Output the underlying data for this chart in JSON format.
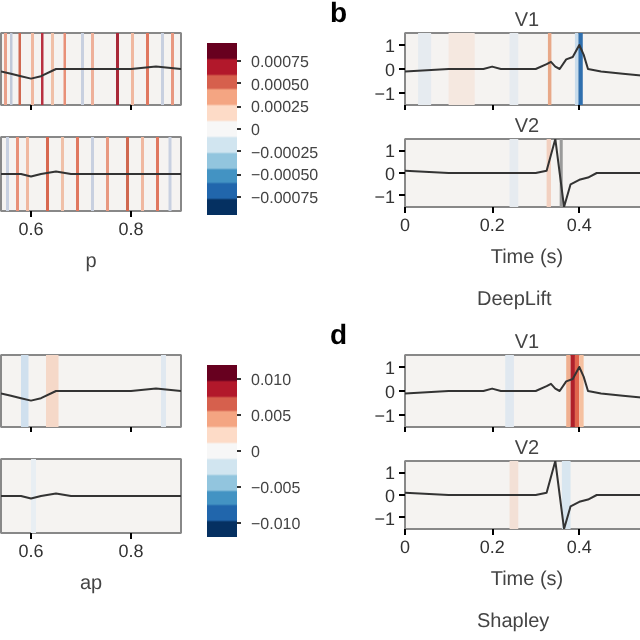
{
  "chart_data": [
    {
      "type": "line",
      "x": [
        0.54,
        0.56,
        0.58,
        0.6,
        0.62,
        0.65,
        0.7,
        0.8,
        0.85,
        0.9
      ],
      "series": [
        {
          "color": "#333333",
          "values": [
            -0.1,
            -0.2,
            -0.3,
            -0.4,
            -0.3,
            0.0,
            0.0,
            0.0,
            0.1,
            0.0
          ]
        }
      ],
      "xlim": [
        0.54,
        0.9
      ],
      "ylim": [
        -1.5,
        1.5
      ],
      "xticks": [
        0.6,
        0.8
      ],
      "yticks": [
        -1,
        0,
        1
      ],
      "tick_labels": false,
      "clim": [
        -0.00095,
        0.00095
      ],
      "cticks": [
        0.00075,
        {
          "value": 0.0005,
          "label": "0.00050"
        },
        0.00025,
        0,
        -0.00025,
        {
          "value": -0.0005,
          "label": "−0.00050"
        },
        -0.00075
      ],
      "bands": [
        {
          "axis": "x",
          "from": 0.546,
          "to": 0.552,
          "color": "#e8a08a"
        },
        {
          "axis": "x",
          "from": 0.558,
          "to": 0.563,
          "color": "#c0c8d8"
        },
        {
          "axis": "x",
          "from": 0.575,
          "to": 0.58,
          "color": "#d06850"
        },
        {
          "axis": "x",
          "from": 0.6,
          "to": 0.606,
          "color": "#f0b8a0"
        },
        {
          "axis": "x",
          "from": 0.62,
          "to": 0.625,
          "color": "#b83040"
        },
        {
          "axis": "x",
          "from": 0.64,
          "to": 0.646,
          "color": "#f0c0a8"
        },
        {
          "axis": "x",
          "from": 0.665,
          "to": 0.67,
          "color": "#e89078"
        },
        {
          "axis": "x",
          "from": 0.7,
          "to": 0.706,
          "color": "#c8d0e0"
        },
        {
          "axis": "x",
          "from": 0.72,
          "to": 0.726,
          "color": "#eeb09a"
        },
        {
          "axis": "x",
          "from": 0.77,
          "to": 0.776,
          "color": "#a82838"
        },
        {
          "axis": "x",
          "from": 0.8,
          "to": 0.806,
          "color": "#f0b8a0"
        },
        {
          "axis": "x",
          "from": 0.83,
          "to": 0.836,
          "color": "#e07860"
        },
        {
          "axis": "x",
          "from": 0.86,
          "to": 0.866,
          "color": "#c8d0e0"
        },
        {
          "axis": "x",
          "from": 0.88,
          "to": 0.886,
          "color": "#e89880"
        }
      ]
    },
    {
      "type": "line",
      "x": [
        0.54,
        0.58,
        0.6,
        0.62,
        0.65,
        0.68,
        0.75,
        0.9
      ],
      "series": [
        {
          "color": "#333333",
          "values": [
            0.0,
            0.0,
            -0.1,
            0.0,
            0.1,
            0.0,
            0.0,
            0.0
          ]
        }
      ],
      "xlim": [
        0.54,
        0.9
      ],
      "ylim": [
        -1.5,
        1.5
      ],
      "xticks": [
        0.6,
        0.8
      ],
      "yticks": [
        -1,
        0,
        1
      ],
      "tick_labels": "x",
      "xlabel": "p",
      "bands": [
        {
          "axis": "x",
          "from": 0.55,
          "to": 0.556,
          "color": "#c8d0e0"
        },
        {
          "axis": "x",
          "from": 0.57,
          "to": 0.576,
          "color": "#e89078"
        },
        {
          "axis": "x",
          "from": 0.59,
          "to": 0.596,
          "color": "#f0b8a0"
        },
        {
          "axis": "x",
          "from": 0.63,
          "to": 0.636,
          "color": "#d86850"
        },
        {
          "axis": "x",
          "from": 0.66,
          "to": 0.666,
          "color": "#f0c0a8"
        },
        {
          "axis": "x",
          "from": 0.69,
          "to": 0.696,
          "color": "#e07860"
        },
        {
          "axis": "x",
          "from": 0.72,
          "to": 0.726,
          "color": "#c8d0e0"
        },
        {
          "axis": "x",
          "from": 0.75,
          "to": 0.756,
          "color": "#e89880"
        },
        {
          "axis": "x",
          "from": 0.79,
          "to": 0.796,
          "color": "#d06850"
        },
        {
          "axis": "x",
          "from": 0.82,
          "to": 0.826,
          "color": "#f0b8a0"
        },
        {
          "axis": "x",
          "from": 0.85,
          "to": 0.856,
          "color": "#e07860"
        },
        {
          "axis": "x",
          "from": 0.875,
          "to": 0.881,
          "color": "#c8d0e0"
        }
      ]
    },
    {
      "type": "line",
      "x": [
        0,
        0.1,
        0.18,
        0.2,
        0.22,
        0.3,
        0.325,
        0.335,
        0.345,
        0.355,
        0.37,
        0.385,
        0.4,
        0.41,
        0.42,
        0.45,
        0.5,
        0.56
      ],
      "series": [
        {
          "color": "#333333",
          "values": [
            -0.1,
            0.0,
            0.0,
            0.1,
            0.0,
            0.0,
            0.2,
            0.3,
            0.1,
            0.0,
            0.4,
            0.5,
            1.0,
            0.6,
            0.0,
            -0.1,
            -0.2,
            -0.3
          ]
        }
      ],
      "xlim": [
        0,
        0.56
      ],
      "ylim": [
        -1.5,
        1.5
      ],
      "xticks": [
        0,
        0.2,
        0.4
      ],
      "yticks": [
        -1,
        0,
        1
      ],
      "tick_labels": "y",
      "title": "V1",
      "annotations": [
        "b"
      ],
      "bands": [
        {
          "axis": "x",
          "from": 0.03,
          "to": 0.06,
          "color": "#e6ebf0"
        },
        {
          "axis": "x",
          "from": 0.1,
          "to": 0.16,
          "color": "#f5e8e0"
        },
        {
          "axis": "x",
          "from": 0.24,
          "to": 0.26,
          "color": "#e6ebf0"
        },
        {
          "axis": "x",
          "from": 0.328,
          "to": 0.336,
          "color": "#e8a888"
        },
        {
          "axis": "x",
          "from": 0.39,
          "to": 0.398,
          "color": "#c8dcec"
        },
        {
          "axis": "x",
          "from": 0.398,
          "to": 0.408,
          "color": "#2f6fae"
        }
      ]
    },
    {
      "type": "line",
      "x": [
        0,
        0.1,
        0.2,
        0.3,
        0.325,
        0.345,
        0.355,
        0.365,
        0.38,
        0.4,
        0.42,
        0.44,
        0.5,
        0.56
      ],
      "series": [
        {
          "color": "#333333",
          "values": [
            0.1,
            0.0,
            0.0,
            0.0,
            0.1,
            1.5,
            0.0,
            -1.5,
            -0.5,
            -0.3,
            -0.2,
            0.0,
            0.0,
            0.0
          ]
        }
      ],
      "xlim": [
        0,
        0.56
      ],
      "ylim": [
        -1.5,
        1.5
      ],
      "xticks": [
        0,
        0.2,
        0.4
      ],
      "yticks": [
        -1,
        0,
        1
      ],
      "title": "V2",
      "xlabel": "Time (s)",
      "annotations": [
        "DeepLift"
      ],
      "bands": [
        {
          "axis": "x",
          "from": 0.24,
          "to": 0.26,
          "color": "#e6ebf0"
        },
        {
          "axis": "x",
          "from": 0.325,
          "to": 0.335,
          "color": "#f2d0c0"
        },
        {
          "axis": "x",
          "from": 0.355,
          "to": 0.362,
          "color": "#9a9a9a"
        }
      ]
    },
    {
      "type": "line",
      "x": [
        0.54,
        0.56,
        0.58,
        0.6,
        0.62,
        0.65,
        0.7,
        0.8,
        0.85,
        0.9
      ],
      "series": [
        {
          "color": "#333333",
          "values": [
            -0.1,
            -0.2,
            -0.3,
            -0.4,
            -0.3,
            0.0,
            0.0,
            0.0,
            0.1,
            0.0
          ]
        }
      ],
      "xlim": [
        0.54,
        0.9
      ],
      "ylim": [
        -1.5,
        1.5
      ],
      "xticks": [
        0.6,
        0.8
      ],
      "yticks": [
        -1,
        0,
        1
      ],
      "tick_labels": false,
      "clim": [
        -0.012,
        0.012
      ],
      "cticks": [
        {
          "value": 0.01,
          "label": "0.010"
        },
        0.005,
        0,
        -0.005,
        {
          "value": -0.01,
          "label": "−0.010"
        }
      ],
      "bands": [
        {
          "axis": "x",
          "from": 0.58,
          "to": 0.595,
          "color": "#d0e0ee"
        },
        {
          "axis": "x",
          "from": 0.63,
          "to": 0.655,
          "color": "#f5d8c8"
        },
        {
          "axis": "x",
          "from": 0.86,
          "to": 0.87,
          "color": "#e0e8f0"
        }
      ]
    },
    {
      "type": "line",
      "x": [
        0.54,
        0.58,
        0.6,
        0.62,
        0.65,
        0.68,
        0.75,
        0.9
      ],
      "series": [
        {
          "color": "#333333",
          "values": [
            0.0,
            0.0,
            -0.1,
            0.0,
            0.1,
            0.0,
            0.0,
            0.0
          ]
        }
      ],
      "xlim": [
        0.54,
        0.9
      ],
      "ylim": [
        -1.5,
        1.5
      ],
      "xticks": [
        0.6,
        0.8
      ],
      "yticks": [
        -1,
        0,
        1
      ],
      "tick_labels": "x",
      "xlabel": "ap",
      "bands": [
        {
          "axis": "x",
          "from": 0.6,
          "to": 0.61,
          "color": "#e8eef3"
        }
      ]
    },
    {
      "type": "line",
      "x": [
        0,
        0.1,
        0.18,
        0.2,
        0.22,
        0.3,
        0.325,
        0.335,
        0.345,
        0.355,
        0.37,
        0.385,
        0.4,
        0.41,
        0.42,
        0.45,
        0.5,
        0.56
      ],
      "series": [
        {
          "color": "#333333",
          "values": [
            -0.1,
            0.0,
            0.0,
            0.1,
            0.0,
            0.0,
            0.2,
            0.3,
            0.1,
            0.0,
            0.4,
            0.5,
            1.0,
            0.6,
            0.0,
            -0.1,
            -0.2,
            -0.3
          ]
        }
      ],
      "xlim": [
        0,
        0.56
      ],
      "ylim": [
        -1.5,
        1.5
      ],
      "xticks": [
        0,
        0.2,
        0.4
      ],
      "yticks": [
        -1,
        0,
        1
      ],
      "tick_labels": "y",
      "title": "V1",
      "annotations": [
        "d"
      ],
      "bands": [
        {
          "axis": "x",
          "from": 0.23,
          "to": 0.25,
          "color": "#e0e8f0"
        },
        {
          "axis": "x",
          "from": 0.37,
          "to": 0.38,
          "color": "#f0b090"
        },
        {
          "axis": "x",
          "from": 0.38,
          "to": 0.39,
          "color": "#b0202a"
        },
        {
          "axis": "x",
          "from": 0.39,
          "to": 0.4,
          "color": "#e0654d"
        },
        {
          "axis": "x",
          "from": 0.4,
          "to": 0.41,
          "color": "#f5c0a0"
        }
      ]
    },
    {
      "type": "line",
      "x": [
        0,
        0.1,
        0.2,
        0.3,
        0.325,
        0.345,
        0.355,
        0.365,
        0.38,
        0.4,
        0.42,
        0.44,
        0.5,
        0.56
      ],
      "series": [
        {
          "color": "#333333",
          "values": [
            0.1,
            0.0,
            0.0,
            0.0,
            0.1,
            1.5,
            0.0,
            -1.5,
            -0.5,
            -0.3,
            -0.2,
            0.0,
            0.0,
            0.0
          ]
        }
      ],
      "xlim": [
        0,
        0.56
      ],
      "ylim": [
        -1.5,
        1.5
      ],
      "xticks": [
        0,
        0.2,
        0.4
      ],
      "yticks": [
        -1,
        0,
        1
      ],
      "title": "V2",
      "xlabel": "Time (s)",
      "annotations": [
        "Shapley"
      ],
      "bands": [
        {
          "axis": "x",
          "from": 0.24,
          "to": 0.26,
          "color": "#f3e0d6"
        },
        {
          "axis": "x",
          "from": 0.36,
          "to": 0.38,
          "color": "#d8e6f0"
        }
      ]
    }
  ]
}
